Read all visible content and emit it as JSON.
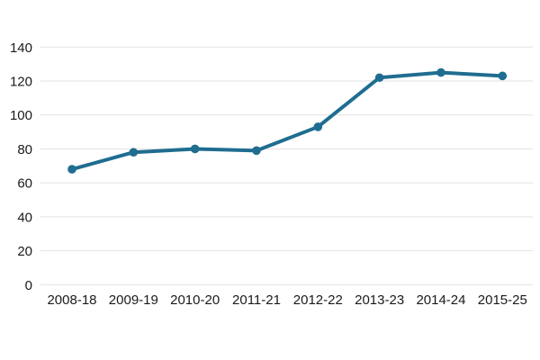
{
  "chart_data": {
    "type": "line",
    "categories": [
      "2008-18",
      "2009-19",
      "2010-20",
      "2011-21",
      "2012-22",
      "2013-23",
      "2014-24",
      "2015-25"
    ],
    "values": [
      68,
      78,
      80,
      79,
      93,
      122,
      125,
      123
    ],
    "series": [
      {
        "name": "series-1",
        "values": [
          68,
          78,
          80,
          79,
          93,
          122,
          125,
          123
        ]
      }
    ],
    "title": "",
    "xlabel": "",
    "ylabel": "",
    "ylim": [
      0,
      140
    ],
    "y_ticks": [
      0,
      20,
      40,
      60,
      80,
      100,
      120,
      140
    ],
    "grid": "horizontal",
    "legend": "none",
    "colors": {
      "line": "#1f6d90",
      "marker": "#1f6d90",
      "gridline": "#e2e2e2",
      "tick_text": "#1a1a1a",
      "background": "#ffffff"
    }
  }
}
